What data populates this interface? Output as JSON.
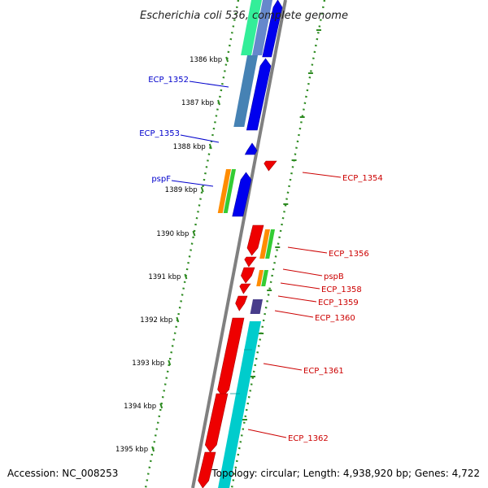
{
  "title": "Escherichia coli 536, complete genome",
  "footer": {
    "accession": "Accession: NC_008253",
    "topology": "Topology: circular; Length: 4,938,920 bp; Genes: 4,722"
  },
  "ticks": [
    "1386 kbp",
    "1387 kbp",
    "1388 kbp",
    "1389 kbp",
    "1390 kbp",
    "1391 kbp",
    "1392 kbp",
    "1393 kbp",
    "1394 kbp",
    "1395 kbp"
  ],
  "gene_labels_left": [
    "ECP_1352",
    "ECP_1353",
    "pspF"
  ],
  "gene_labels_right": [
    "ECP_1354",
    "ECP_1356",
    "pspB",
    "ECP_1358",
    "ECP_1359",
    "ECP_1360",
    "ECP_1361",
    "ECP_1362"
  ],
  "colors": {
    "forward_cds": "#0000ee",
    "reverse_cds": "#ee0000",
    "left_label": "#0000cc",
    "right_label": "#cc0000",
    "tick_dots": "#2e8b22",
    "backbone": "#808080",
    "cog_orange": "#ff8c00",
    "cog_green": "#33cc33",
    "cyan_track": "#00cccc",
    "steelblue_track": "#4682b4",
    "mint_track": "#33ee99",
    "slate_track": "#483d8b"
  }
}
